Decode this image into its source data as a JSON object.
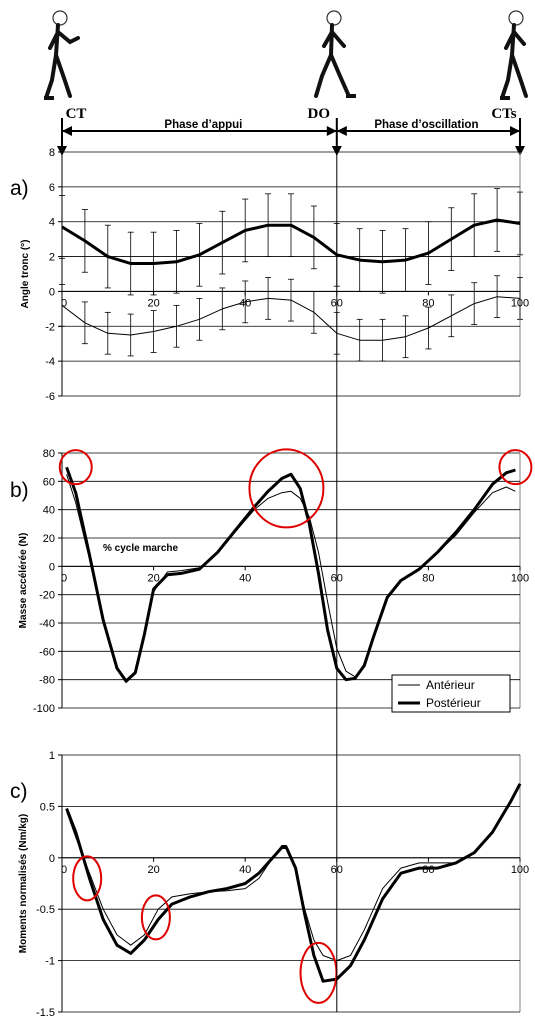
{
  "events": [
    {
      "label": "CT",
      "pct": 0
    },
    {
      "label": "DO",
      "pct": 60
    },
    {
      "label": "CTs",
      "pct": 100
    }
  ],
  "phases": [
    {
      "label": "Phase d’appui",
      "from": 0,
      "to": 60
    },
    {
      "label": "Phase d’oscillation",
      "from": 60,
      "to": 100
    }
  ],
  "chart_data": [
    {
      "type": "line",
      "panel_label": "a)",
      "ylabel": "Angle tronc (°)",
      "xlabel": "",
      "xlim": [
        0,
        100
      ],
      "ylim": [
        -6,
        8
      ],
      "yticks": [
        8,
        6,
        4,
        2,
        0,
        -2,
        -4,
        -6
      ],
      "xticks": [
        0,
        20,
        40,
        60,
        80,
        100
      ],
      "grid": true,
      "series": [
        {
          "key": "posterieur",
          "error_bars": true,
          "error": 1.8,
          "x": [
            0,
            5,
            10,
            15,
            20,
            25,
            30,
            35,
            40,
            45,
            50,
            55,
            60,
            65,
            70,
            75,
            80,
            85,
            90,
            95,
            100
          ],
          "values": [
            3.7,
            2.9,
            2.0,
            1.6,
            1.6,
            1.7,
            2.1,
            2.8,
            3.5,
            3.8,
            3.8,
            3.1,
            2.1,
            1.8,
            1.7,
            1.8,
            2.2,
            3.0,
            3.8,
            4.1,
            3.9
          ]
        },
        {
          "key": "anterieur",
          "error_bars": true,
          "error": 1.2,
          "x": [
            0,
            5,
            10,
            15,
            20,
            25,
            30,
            35,
            40,
            45,
            50,
            55,
            60,
            65,
            70,
            75,
            80,
            85,
            90,
            95,
            100
          ],
          "values": [
            -0.8,
            -1.8,
            -2.4,
            -2.5,
            -2.3,
            -2.0,
            -1.6,
            -1.0,
            -0.6,
            -0.4,
            -0.5,
            -1.2,
            -2.4,
            -2.8,
            -2.8,
            -2.6,
            -2.1,
            -1.4,
            -0.7,
            -0.3,
            -0.4
          ]
        }
      ]
    },
    {
      "type": "line",
      "panel_label": "b)",
      "ylabel": "Masse accélérée (N)",
      "xlabel": "% cycle marche",
      "xlim": [
        0,
        100
      ],
      "ylim": [
        -100,
        80
      ],
      "yticks": [
        80,
        60,
        40,
        20,
        0,
        -20,
        -40,
        -60,
        -80,
        -100
      ],
      "xticks": [
        0,
        20,
        40,
        60,
        80,
        100
      ],
      "grid": true,
      "legend_position": "bottom-right",
      "series": [
        {
          "key": "anterieur",
          "name": "Antérieur",
          "x": [
            1,
            3,
            6,
            9,
            12,
            14,
            16,
            18,
            20,
            23,
            26,
            30,
            34,
            38,
            42,
            45,
            48,
            50,
            52,
            54,
            56,
            58,
            60,
            62,
            64,
            66,
            68,
            71,
            74,
            78,
            82,
            86,
            90,
            94,
            97,
            99
          ],
          "values": [
            65,
            45,
            5,
            -40,
            -72,
            -82,
            -76,
            -50,
            -18,
            -4,
            -3,
            -1,
            10,
            25,
            40,
            48,
            52,
            53,
            48,
            35,
            10,
            -25,
            -58,
            -74,
            -78,
            -70,
            -50,
            -22,
            -10,
            -2,
            10,
            22,
            38,
            52,
            56,
            53
          ]
        },
        {
          "key": "posterieur",
          "name": "Postérieur",
          "x": [
            1,
            3,
            6,
            9,
            12,
            14,
            16,
            18,
            20,
            23,
            26,
            30,
            34,
            38,
            42,
            45,
            48,
            50,
            52,
            54,
            56,
            58,
            60,
            62,
            64,
            66,
            68,
            71,
            74,
            78,
            82,
            86,
            90,
            94,
            97,
            99
          ],
          "values": [
            70,
            52,
            8,
            -38,
            -72,
            -81,
            -75,
            -48,
            -16,
            -6,
            -5,
            -2,
            10,
            26,
            42,
            53,
            62,
            65,
            55,
            30,
            -5,
            -45,
            -72,
            -80,
            -79,
            -70,
            -50,
            -22,
            -10,
            -2,
            10,
            24,
            40,
            58,
            66,
            68
          ]
        }
      ],
      "highlights": [
        {
          "x": 3,
          "y": 70
        },
        {
          "x": 49,
          "y": 55
        },
        {
          "x": 99,
          "y": 70
        }
      ]
    },
    {
      "type": "line",
      "panel_label": "c)",
      "ylabel": "Moments normalisés (Nm/kg)",
      "xlabel": "",
      "xlim": [
        0,
        100
      ],
      "ylim": [
        -1.5,
        1
      ],
      "yticks": [
        1,
        0.5,
        0,
        -0.5,
        -1,
        -1.5
      ],
      "xticks": [
        0,
        20,
        40,
        60,
        80,
        100
      ],
      "grid": true,
      "series": [
        {
          "key": "anterieur",
          "x": [
            1,
            3,
            6,
            9,
            12,
            15,
            18,
            21,
            24,
            28,
            32,
            36,
            40,
            43,
            46,
            48,
            49,
            51,
            53,
            55,
            57,
            60,
            63,
            66,
            70,
            74,
            78,
            82,
            86,
            90,
            94,
            98,
            100
          ],
          "values": [
            0.45,
            0.2,
            -0.15,
            -0.5,
            -0.75,
            -0.85,
            -0.75,
            -0.5,
            -0.38,
            -0.35,
            -0.33,
            -0.32,
            -0.3,
            -0.2,
            0.0,
            0.12,
            0.12,
            -0.1,
            -0.5,
            -0.8,
            -0.95,
            -1.0,
            -0.95,
            -0.7,
            -0.3,
            -0.1,
            -0.05,
            -0.05,
            -0.05,
            0.05,
            0.25,
            0.55,
            0.7
          ]
        },
        {
          "key": "posterieur",
          "x": [
            1,
            3,
            6,
            9,
            12,
            15,
            18,
            21,
            24,
            28,
            32,
            36,
            40,
            43,
            46,
            48,
            49,
            51,
            53,
            55,
            57,
            60,
            63,
            66,
            70,
            74,
            78,
            82,
            86,
            90,
            94,
            98,
            100
          ],
          "values": [
            0.48,
            0.25,
            -0.2,
            -0.6,
            -0.85,
            -0.93,
            -0.8,
            -0.6,
            -0.45,
            -0.38,
            -0.33,
            -0.3,
            -0.25,
            -0.15,
            0.0,
            0.1,
            0.1,
            -0.1,
            -0.55,
            -0.95,
            -1.2,
            -1.18,
            -1.05,
            -0.8,
            -0.4,
            -0.15,
            -0.1,
            -0.1,
            -0.05,
            0.05,
            0.25,
            0.55,
            0.72
          ]
        }
      ],
      "highlights": [
        {
          "x": 5.5,
          "y": -0.2
        },
        {
          "x": 20.5,
          "y": -0.58
        },
        {
          "x": 56,
          "y": -1.12
        }
      ]
    }
  ]
}
